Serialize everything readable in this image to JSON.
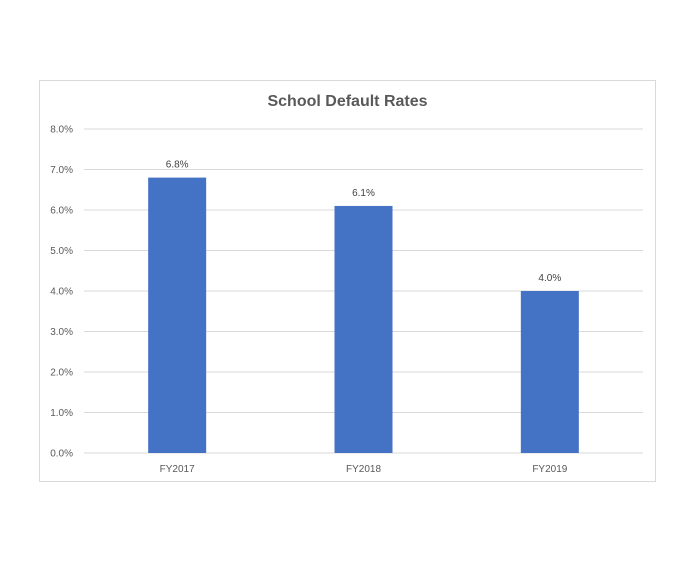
{
  "chart_data": {
    "type": "bar",
    "title": "School Default Rates",
    "xlabel": "",
    "ylabel": "",
    "categories": [
      "FY2017",
      "FY2018",
      "FY2019"
    ],
    "values": [
      6.8,
      6.1,
      4.0
    ],
    "data_labels": [
      "6.8%",
      "6.1%",
      "4.0%"
    ],
    "ylim": [
      0,
      8
    ],
    "y_ticks": [
      0,
      1,
      2,
      3,
      4,
      5,
      6,
      7,
      8
    ],
    "y_tick_labels": [
      "0.0%",
      "1.0%",
      "2.0%",
      "3.0%",
      "4.0%",
      "5.0%",
      "6.0%",
      "7.0%",
      "8.0%"
    ],
    "grid": true,
    "legend": "none",
    "bar_color": "#4472C4",
    "gridline_color": "#d9d9d9"
  }
}
